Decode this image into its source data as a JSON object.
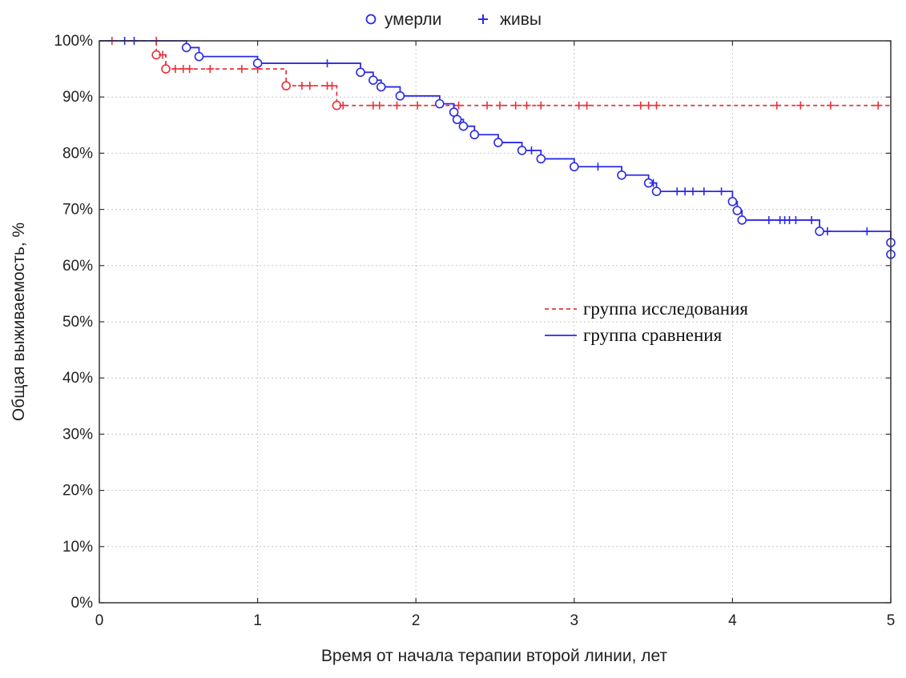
{
  "chart_data": {
    "type": "line",
    "subtype": "kaplan-meier",
    "xlabel": "Время от начала терапии второй линии, лет",
    "ylabel": "Общая выживаемость, %",
    "xlim": [
      0,
      5
    ],
    "ylim": [
      0,
      100
    ],
    "xticks": [
      "0",
      "1",
      "2",
      "3",
      "4",
      "5"
    ],
    "yticks": [
      "0%",
      "10%",
      "20%",
      "30%",
      "40%",
      "50%",
      "60%",
      "70%",
      "80%",
      "90%",
      "100%"
    ],
    "grid": true,
    "legend_markers": [
      {
        "label": "умерли",
        "marker": "circle"
      },
      {
        "label": "живы",
        "marker": "plus"
      }
    ],
    "legend_series": [
      {
        "label": "группа исследования",
        "style": "dashed",
        "color": "#e8323c"
      },
      {
        "label": "группа сравнения",
        "style": "solid",
        "color": "#2a2ae6"
      }
    ],
    "series": [
      {
        "name": "группа исследования",
        "color": "#e8323c",
        "dashed": true,
        "steps": [
          [
            0,
            100
          ],
          [
            0.36,
            97.5
          ],
          [
            0.42,
            95
          ],
          [
            1.18,
            92
          ],
          [
            1.5,
            88.5
          ],
          [
            5,
            88.5
          ]
        ],
        "deaths": [
          [
            0.36,
            97.5
          ],
          [
            0.42,
            95
          ],
          [
            1.18,
            92
          ],
          [
            1.5,
            88.5
          ]
        ],
        "censored": [
          [
            0.08,
            100
          ],
          [
            0.36,
            100
          ],
          [
            0.4,
            97.5
          ],
          [
            0.48,
            95
          ],
          [
            0.53,
            95
          ],
          [
            0.57,
            95
          ],
          [
            0.7,
            95
          ],
          [
            0.9,
            95
          ],
          [
            1.0,
            95
          ],
          [
            1.28,
            92
          ],
          [
            1.33,
            92
          ],
          [
            1.44,
            92
          ],
          [
            1.47,
            92
          ],
          [
            1.54,
            88.5
          ],
          [
            1.73,
            88.5
          ],
          [
            1.77,
            88.5
          ],
          [
            1.88,
            88.5
          ],
          [
            2.01,
            88.5
          ],
          [
            2.27,
            88.5
          ],
          [
            2.45,
            88.5
          ],
          [
            2.53,
            88.5
          ],
          [
            2.63,
            88.5
          ],
          [
            2.7,
            88.5
          ],
          [
            2.79,
            88.5
          ],
          [
            3.03,
            88.5
          ],
          [
            3.08,
            88.5
          ],
          [
            3.42,
            88.5
          ],
          [
            3.47,
            88.5
          ],
          [
            3.52,
            88.5
          ],
          [
            4.28,
            88.5
          ],
          [
            4.43,
            88.5
          ],
          [
            4.62,
            88.5
          ],
          [
            4.92,
            88.5
          ]
        ]
      },
      {
        "name": "группа сравнения",
        "color": "#2a2ae6",
        "dashed": false,
        "steps": [
          [
            0,
            100
          ],
          [
            0.55,
            98.8
          ],
          [
            0.63,
            97.2
          ],
          [
            1.0,
            96
          ],
          [
            1.65,
            94.4
          ],
          [
            1.73,
            93
          ],
          [
            1.78,
            91.8
          ],
          [
            1.9,
            90.2
          ],
          [
            2.15,
            88.8
          ],
          [
            2.24,
            87.3
          ],
          [
            2.26,
            86
          ],
          [
            2.3,
            84.8
          ],
          [
            2.37,
            83.3
          ],
          [
            2.52,
            81.9
          ],
          [
            2.67,
            80.5
          ],
          [
            2.79,
            79
          ],
          [
            3.0,
            77.6
          ],
          [
            3.3,
            76.1
          ],
          [
            3.47,
            74.7
          ],
          [
            3.52,
            73.2
          ],
          [
            4.0,
            71.4
          ],
          [
            4.03,
            69.8
          ],
          [
            4.06,
            68.1
          ],
          [
            4.55,
            66.1
          ],
          [
            5.0,
            64.1
          ],
          [
            5.0,
            62
          ]
        ],
        "deaths": [
          [
            0.55,
            98.8
          ],
          [
            0.63,
            97.2
          ],
          [
            1.0,
            96
          ],
          [
            1.65,
            94.4
          ],
          [
            1.73,
            93
          ],
          [
            1.78,
            91.8
          ],
          [
            1.9,
            90.2
          ],
          [
            2.15,
            88.8
          ],
          [
            2.24,
            87.3
          ],
          [
            2.26,
            86
          ],
          [
            2.3,
            84.8
          ],
          [
            2.37,
            83.3
          ],
          [
            2.52,
            81.9
          ],
          [
            2.67,
            80.5
          ],
          [
            2.79,
            79
          ],
          [
            3.0,
            77.6
          ],
          [
            3.3,
            76.1
          ],
          [
            3.47,
            74.7
          ],
          [
            3.52,
            73.2
          ],
          [
            4.0,
            71.4
          ],
          [
            4.03,
            69.8
          ],
          [
            4.06,
            68.1
          ],
          [
            4.55,
            66.1
          ],
          [
            5.0,
            64.1
          ],
          [
            5.0,
            62
          ]
        ],
        "censored": [
          [
            0.16,
            100
          ],
          [
            0.22,
            100
          ],
          [
            1.44,
            96
          ],
          [
            2.73,
            80.5
          ],
          [
            3.15,
            77.6
          ],
          [
            3.5,
            74.7
          ],
          [
            3.65,
            73.2
          ],
          [
            3.7,
            73.2
          ],
          [
            3.75,
            73.2
          ],
          [
            3.82,
            73.2
          ],
          [
            3.93,
            73.2
          ],
          [
            4.23,
            68.1
          ],
          [
            4.3,
            68.1
          ],
          [
            4.33,
            68.1
          ],
          [
            4.36,
            68.1
          ],
          [
            4.4,
            68.1
          ],
          [
            4.5,
            68.1
          ],
          [
            4.6,
            66.1
          ],
          [
            4.85,
            66.1
          ]
        ]
      }
    ]
  }
}
